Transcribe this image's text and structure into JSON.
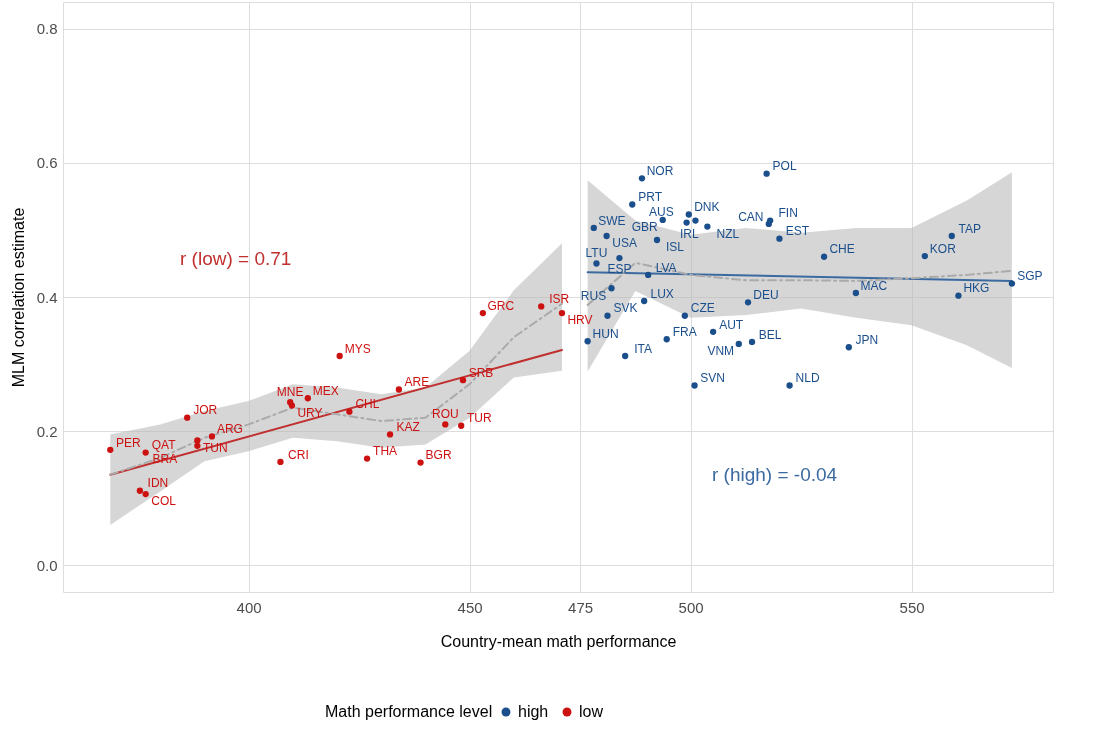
{
  "chart_data": {
    "type": "scatter",
    "xlabel": "Country-mean math performance",
    "ylabel": "MLM correlation estimate",
    "legend_title": "Math performance level",
    "legend": "bottom",
    "grid": true,
    "xlim": [
      358,
      582
    ],
    "xticks": [
      400,
      450,
      475,
      500,
      550
    ],
    "ylim": [
      -0.04,
      0.84
    ],
    "yticks": [
      {
        "value": 0,
        "label": "0.0"
      },
      0.2,
      0.4,
      0.6,
      0.8
    ],
    "series": [
      {
        "name": "high",
        "color": "#1b4f8c",
        "marker": "circle",
        "x": [
          476.7,
          489.0,
          486.8,
          492.4,
          493.7,
          499.6,
          501.1,
          503.8,
          499.1,
          517.2,
          517.7,
          518.0,
          520.1,
          481.0,
          478.1,
          490.4,
          489.5,
          483.9,
          478.7,
          482.1,
          481.2,
          485.2,
          494.6,
          498.7,
          505.1,
          513.0,
          510.9,
          513.9,
          500.9,
          522.4,
          530.2,
          553.0,
          559.1,
          572.7,
          560.6,
          537.4,
          535.8
        ],
        "values": [
          0.334,
          0.577,
          0.538,
          0.485,
          0.515,
          0.523,
          0.514,
          0.505,
          0.511,
          0.584,
          0.509,
          0.514,
          0.487,
          0.491,
          0.503,
          0.433,
          0.394,
          0.458,
          0.45,
          0.413,
          0.372,
          0.312,
          0.337,
          0.372,
          0.348,
          0.392,
          0.33,
          0.333,
          0.268,
          0.268,
          0.46,
          0.461,
          0.491,
          0.42,
          0.402,
          0.406,
          0.325
        ]
      },
      {
        "name": "low",
        "color": "#cc1111",
        "marker": "circle",
        "x": [
          368.7,
          376.7,
          375.4,
          376.7,
          386.1,
          388.4,
          391.7,
          388.4,
          409.4,
          413.4,
          409.8,
          407.2,
          420.6,
          422.8,
          434.0,
          432.0,
          426.8,
          438.9,
          444.5,
          448.1,
          448.5,
          453.0,
          466.2,
          470.9
        ],
        "values": [
          0.172,
          0.168,
          0.111,
          0.106,
          0.22,
          0.186,
          0.192,
          0.178,
          0.243,
          0.249,
          0.238,
          0.154,
          0.312,
          0.229,
          0.262,
          0.195,
          0.159,
          0.153,
          0.21,
          0.208,
          0.276,
          0.376,
          0.386,
          0.376
        ]
      },
      {
        "type": "line",
        "color": "#c03030",
        "marker": "none",
        "line_style": "solid",
        "x": [
          368.7,
          470.9
        ],
        "values": [
          0.135,
          0.321
        ]
      },
      {
        "type": "line",
        "color": "#3b6aa0",
        "marker": "none",
        "line_style": "solid",
        "x": [
          476.7,
          572.7
        ],
        "values": [
          0.437,
          0.424
        ]
      },
      {
        "type": "line",
        "color": "#aaaaaa",
        "marker": "none",
        "line_style": "dashed",
        "x": [
          368.7,
          380,
          390,
          400,
          410,
          420,
          430,
          440,
          450,
          460,
          470.9
        ],
        "values": [
          0.135,
          0.16,
          0.19,
          0.21,
          0.235,
          0.225,
          0.215,
          0.22,
          0.27,
          0.34,
          0.39
        ],
        "lower": [
          0.06,
          0.11,
          0.155,
          0.17,
          0.19,
          0.185,
          0.175,
          0.18,
          0.22,
          0.28,
          0.29
        ],
        "upper": [
          0.195,
          0.21,
          0.23,
          0.245,
          0.27,
          0.265,
          0.255,
          0.265,
          0.32,
          0.41,
          0.48
        ]
      },
      {
        "type": "line",
        "color": "#aaaaaa",
        "marker": "none",
        "line_style": "dashed",
        "x": [
          476.7,
          487.5,
          500,
          512.5,
          525,
          537.5,
          550,
          562.5,
          572.7
        ],
        "values": [
          0.388,
          0.451,
          0.433,
          0.425,
          0.425,
          0.424,
          0.428,
          0.433,
          0.439
        ],
        "lower": [
          0.289,
          0.409,
          0.369,
          0.373,
          0.383,
          0.369,
          0.358,
          0.328,
          0.294
        ],
        "upper": [
          0.574,
          0.514,
          0.493,
          0.503,
          0.496,
          0.503,
          0.503,
          0.544,
          0.586
        ]
      }
    ],
    "annotations": [
      "r (low) = 0.71",
      "r (high) = -0.04",
      {
        "text": "HUN",
        "x": 476.7,
        "y": 0.334
      },
      {
        "text": "NOR",
        "x": 489.0,
        "y": 0.577
      },
      {
        "text": "PRT",
        "x": 486.8,
        "y": 0.538
      },
      {
        "text": "ISL",
        "x": 492.4,
        "y": 0.485
      },
      {
        "text": "GBR",
        "x": 493.7,
        "y": 0.515
      },
      {
        "text": "DNK",
        "x": 499.6,
        "y": 0.523
      },
      {
        "text": "NZL",
        "x": 501.1,
        "y": 0.514
      },
      {
        "text": "IRL",
        "x": 503.8,
        "y": 0.505
      },
      {
        "text": "AUS",
        "x": 499.1,
        "y": 0.511
      },
      {
        "text": "POL",
        "x": 517.2,
        "y": 0.584
      },
      {
        "text": "CAN",
        "x": 517.7,
        "y": 0.509
      },
      {
        "text": "FIN",
        "x": 518.0,
        "y": 0.514
      },
      {
        "text": "EST",
        "x": 520.1,
        "y": 0.487
      },
      {
        "text": "USA",
        "x": 481.0,
        "y": 0.491
      },
      {
        "text": "SWE",
        "x": 478.1,
        "y": 0.503
      },
      {
        "text": "LVA",
        "x": 490.4,
        "y": 0.433
      },
      {
        "text": "LUX",
        "x": 489.5,
        "y": 0.394
      },
      {
        "text": "ESP",
        "x": 483.9,
        "y": 0.458
      },
      {
        "text": "LTU",
        "x": 478.7,
        "y": 0.45
      },
      {
        "text": "RUS",
        "x": 482.1,
        "y": 0.413
      },
      {
        "text": "SVK",
        "x": 481.2,
        "y": 0.372
      },
      {
        "text": "ITA",
        "x": 485.2,
        "y": 0.312
      },
      {
        "text": "FRA",
        "x": 494.6,
        "y": 0.337
      },
      {
        "text": "CZE",
        "x": 498.7,
        "y": 0.372
      },
      {
        "text": "AUT",
        "x": 505.1,
        "y": 0.348
      },
      {
        "text": "DEU",
        "x": 513.0,
        "y": 0.392
      },
      {
        "text": "VNM",
        "x": 510.9,
        "y": 0.33
      },
      {
        "text": "BEL",
        "x": 513.9,
        "y": 0.333
      },
      {
        "text": "SVN",
        "x": 500.9,
        "y": 0.268
      },
      {
        "text": "NLD",
        "x": 522.4,
        "y": 0.268
      },
      {
        "text": "CHE",
        "x": 530.2,
        "y": 0.46
      },
      {
        "text": "KOR",
        "x": 553.0,
        "y": 0.461
      },
      {
        "text": "TAP",
        "x": 559.1,
        "y": 0.491
      },
      {
        "text": "SGP",
        "x": 572.7,
        "y": 0.42
      },
      {
        "text": "HKG",
        "x": 560.6,
        "y": 0.402
      },
      {
        "text": "MAC",
        "x": 537.4,
        "y": 0.406
      },
      {
        "text": "JPN",
        "x": 535.8,
        "y": 0.325
      },
      {
        "text": "PER",
        "x": 368.7,
        "y": 0.172
      },
      {
        "text": "QAT",
        "x": 376.7,
        "y": 0.168
      },
      {
        "text": "IDN",
        "x": 375.4,
        "y": 0.111
      },
      {
        "text": "COL",
        "x": 376.7,
        "y": 0.106
      },
      {
        "text": "JOR",
        "x": 386.1,
        "y": 0.22
      },
      {
        "text": "TUN",
        "x": 388.4,
        "y": 0.186
      },
      {
        "text": "ARG",
        "x": 391.7,
        "y": 0.192
      },
      {
        "text": "BRA",
        "x": 388.4,
        "y": 0.178
      },
      {
        "text": "MNE",
        "x": 409.4,
        "y": 0.243
      },
      {
        "text": "MEX",
        "x": 413.4,
        "y": 0.249
      },
      {
        "text": "URY",
        "x": 409.8,
        "y": 0.238
      },
      {
        "text": "CRI",
        "x": 407.2,
        "y": 0.154
      },
      {
        "text": "MYS",
        "x": 420.6,
        "y": 0.312
      },
      {
        "text": "CHL",
        "x": 422.8,
        "y": 0.229
      },
      {
        "text": "ARE",
        "x": 434.0,
        "y": 0.262
      },
      {
        "text": "KAZ",
        "x": 432.0,
        "y": 0.195
      },
      {
        "text": "THA",
        "x": 426.8,
        "y": 0.159
      },
      {
        "text": "BGR",
        "x": 438.9,
        "y": 0.153
      },
      {
        "text": "ROU",
        "x": 444.5,
        "y": 0.21
      },
      {
        "text": "TUR",
        "x": 448.1,
        "y": 0.208
      },
      {
        "text": "SRB",
        "x": 448.5,
        "y": 0.276
      },
      {
        "text": "GRC",
        "x": 453.0,
        "y": 0.376
      },
      {
        "text": "ISR",
        "x": 466.2,
        "y": 0.386
      },
      {
        "text": "HRV",
        "x": 470.9,
        "y": 0.376
      }
    ]
  }
}
